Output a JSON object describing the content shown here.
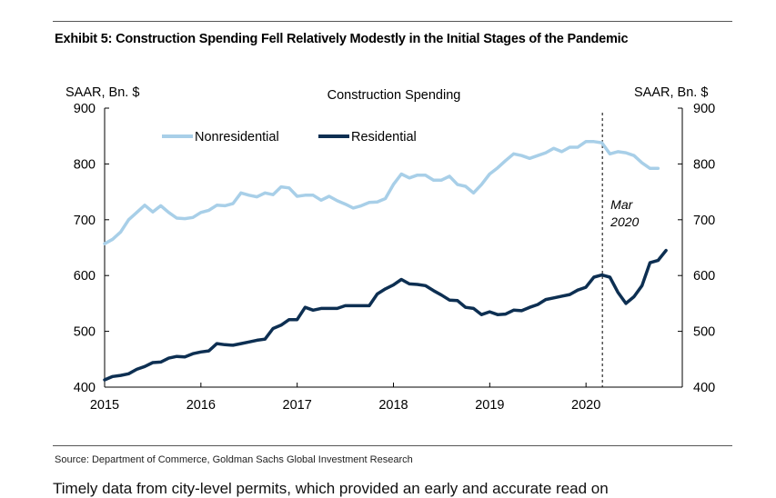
{
  "exhibit_title": "Exhibit 5: Construction Spending Fell Relatively Modestly in the Initial Stages of the Pandemic",
  "source": "Source: Department of Commerce, Goldman Sachs Global Investment Research",
  "body_text_partial": "Timely data from city-level permits, which provided an early and accurate read on",
  "colors": {
    "nonresidential": "#a8cfe8",
    "residential": "#0d2f52"
  },
  "chart_data": {
    "type": "line",
    "title": "Construction Spending",
    "ylabel_left": "SAAR, Bn. $",
    "ylabel_right": "SAAR, Bn. $",
    "ylim": [
      400,
      900
    ],
    "y_ticks": [
      "400",
      "500",
      "600",
      "700",
      "800",
      "900"
    ],
    "x_ticks": [
      "2015",
      "2016",
      "2017",
      "2018",
      "2019",
      "2020"
    ],
    "xlim": [
      2015.0,
      2021.0
    ],
    "annotation": {
      "x": 2020.17,
      "line1": "Mar",
      "line2": "2020"
    },
    "legend": [
      {
        "name": "Nonresidential",
        "series": 0
      },
      {
        "name": "Residential",
        "series": 1
      }
    ],
    "series": [
      {
        "name": "Nonresidential",
        "x_start": 2015.0,
        "x_step": 0.0833,
        "values": [
          657,
          665,
          678,
          700,
          713,
          726,
          714,
          725,
          713,
          703,
          702,
          704,
          713,
          717,
          726,
          725,
          729,
          748,
          744,
          741,
          748,
          745,
          759,
          757,
          742,
          744,
          744,
          735,
          742,
          734,
          728,
          721,
          725,
          731,
          732,
          738,
          763,
          782,
          775,
          780,
          780,
          771,
          771,
          778,
          763,
          760,
          748,
          763,
          782,
          793,
          806,
          818,
          815,
          810,
          815,
          820,
          828,
          822,
          830,
          830,
          840,
          840,
          838,
          818,
          822,
          820,
          815,
          802,
          792,
          792
        ]
      },
      {
        "name": "Residential",
        "x_start": 2015.0,
        "x_step": 0.0833,
        "values": [
          413,
          419,
          421,
          424,
          432,
          437,
          444,
          445,
          452,
          455,
          454,
          460,
          463,
          465,
          478,
          476,
          475,
          478,
          481,
          484,
          486,
          505,
          511,
          521,
          521,
          543,
          538,
          541,
          541,
          541,
          546,
          546,
          546,
          546,
          567,
          576,
          583,
          593,
          585,
          584,
          582,
          573,
          565,
          556,
          555,
          543,
          541,
          530,
          535,
          530,
          531,
          538,
          537,
          543,
          548,
          557,
          560,
          563,
          566,
          574,
          579,
          597,
          601,
          597,
          570,
          550,
          562,
          582,
          623,
          627,
          645
        ]
      }
    ]
  }
}
